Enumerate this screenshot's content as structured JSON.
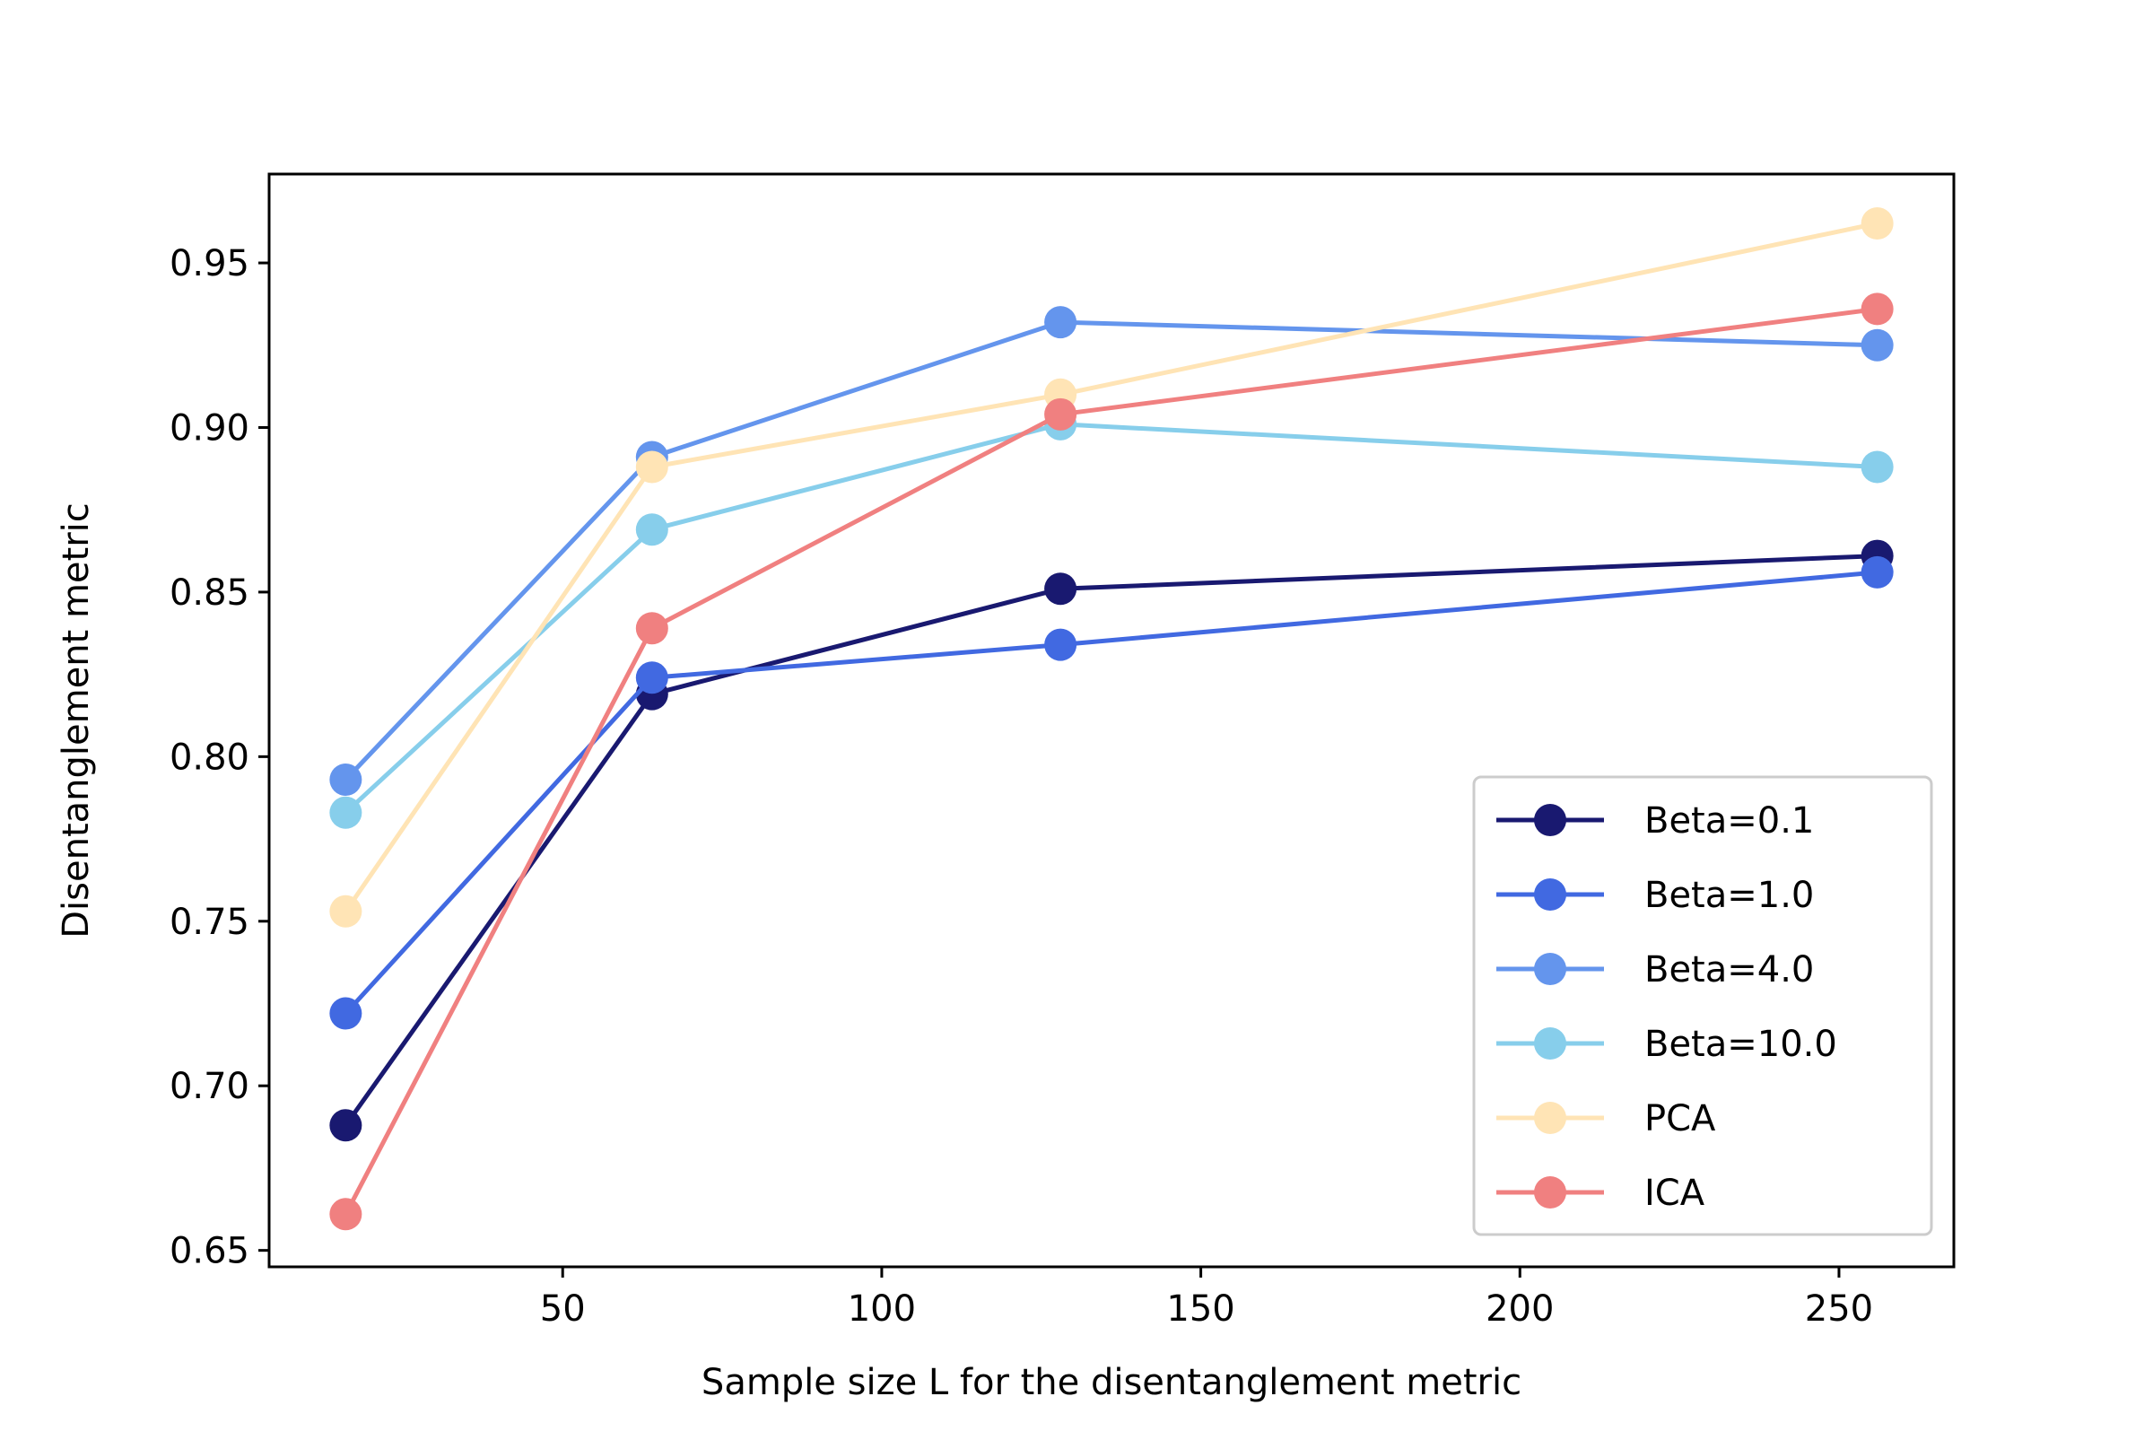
{
  "chart_data": {
    "type": "line",
    "xlabel": "Sample size L for the disentanglement metric",
    "ylabel": "Disentanglement metric",
    "xlim": [
      4,
      268
    ],
    "ylim": [
      0.645,
      0.977
    ],
    "xticks": [
      50,
      100,
      150,
      200,
      250
    ],
    "xtick_labels": [
      "50",
      "100",
      "150",
      "200",
      "250"
    ],
    "yticks": [
      0.65,
      0.7,
      0.75,
      0.8,
      0.85,
      0.9,
      0.95
    ],
    "ytick_labels": [
      "0.65",
      "0.70",
      "0.75",
      "0.80",
      "0.85",
      "0.90",
      "0.95"
    ],
    "grid": false,
    "legend_position": "lower-right",
    "x": [
      16,
      64,
      128,
      256
    ],
    "series": [
      {
        "name": "Beta=0.1",
        "color": "#191970",
        "values": [
          0.688,
          0.819,
          0.851,
          0.861
        ]
      },
      {
        "name": "Beta=1.0",
        "color": "#4169E1",
        "values": [
          0.722,
          0.824,
          0.834,
          0.856
        ]
      },
      {
        "name": "Beta=4.0",
        "color": "#6495ED",
        "values": [
          0.793,
          0.891,
          0.932,
          0.925
        ]
      },
      {
        "name": "Beta=10.0",
        "color": "#87CEEB",
        "values": [
          0.783,
          0.869,
          0.901,
          0.888
        ]
      },
      {
        "name": "PCA",
        "color": "#FFE4B5",
        "values": [
          0.753,
          0.888,
          0.91,
          0.962
        ]
      },
      {
        "name": "ICA",
        "color": "#F08080",
        "values": [
          0.661,
          0.839,
          0.904,
          0.936
        ]
      }
    ]
  }
}
